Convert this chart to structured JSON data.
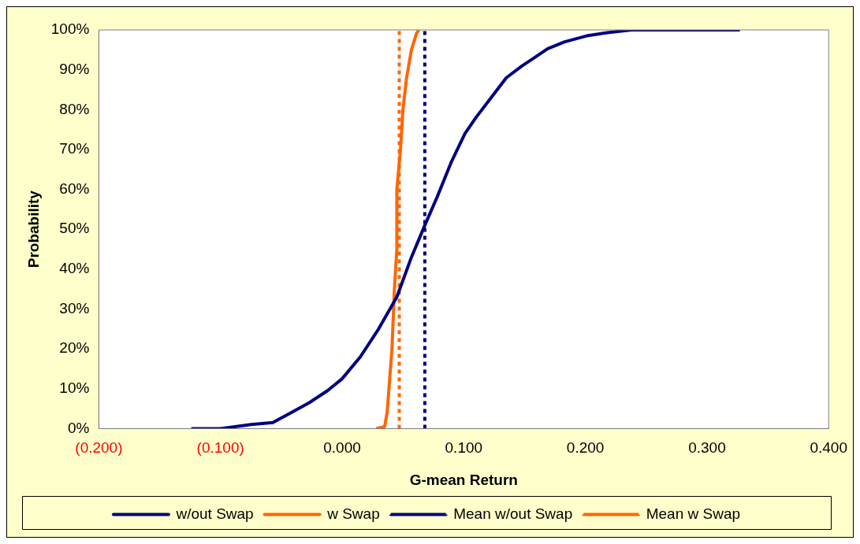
{
  "chart_data": {
    "type": "line",
    "xlabel": "G-mean Return",
    "ylabel": "Probability",
    "xlim": [
      -0.2,
      0.4
    ],
    "xticks": [
      {
        "value": -0.2,
        "label": "(0.200)"
      },
      {
        "value": -0.1,
        "label": "(0.100)"
      },
      {
        "value": 0,
        "label": "0.000"
      },
      {
        "value": 0.1,
        "label": "0.100"
      },
      {
        "value": 0.2,
        "label": "0.200"
      },
      {
        "value": 0.3,
        "label": "0.300"
      },
      {
        "value": 0.4,
        "label": "0.400"
      }
    ],
    "ylim": [
      0,
      100
    ],
    "yticks": [
      {
        "value": 0,
        "label": "0%"
      },
      {
        "value": 10,
        "label": "10%"
      },
      {
        "value": 20,
        "label": "20%"
      },
      {
        "value": 30,
        "label": "30%"
      },
      {
        "value": 40,
        "label": "40%"
      },
      {
        "value": 50,
        "label": "50%"
      },
      {
        "value": 60,
        "label": "60%"
      },
      {
        "value": 70,
        "label": "70%"
      },
      {
        "value": 80,
        "label": "80%"
      },
      {
        "value": 90,
        "label": "90%"
      },
      {
        "value": 100,
        "label": "100%"
      }
    ],
    "grid": false,
    "legend": "bottom",
    "marker": "none",
    "series": [
      {
        "name": "w/out Swap",
        "color": "#000080",
        "line_style": "solid",
        "x": [
          -0.124,
          -0.1,
          -0.075,
          -0.057,
          -0.042,
          -0.027,
          -0.012,
          0,
          0.015,
          0.03,
          0.045,
          0.057,
          0.068,
          0.078,
          0.09,
          0.101,
          0.11,
          0.125,
          0.135,
          0.148,
          0.158,
          0.169,
          0.183,
          0.201,
          0.218,
          0.238,
          0.327
        ],
        "values": [
          0,
          0,
          1,
          1.5,
          4,
          6.5,
          9.5,
          12.5,
          18,
          25,
          33,
          43,
          51,
          58,
          67,
          74,
          78,
          84,
          88,
          91,
          93,
          95.3,
          97,
          98.5,
          99.3,
          100,
          100
        ]
      },
      {
        "name": "w Swap",
        "color": "#ff6600",
        "line_style": "solid",
        "x": [
          0.028,
          0.035,
          0.037,
          0.038,
          0.039,
          0.041,
          0.043,
          0.045,
          0.045,
          0.048,
          0.05,
          0.053,
          0.057,
          0.061,
          0.063
        ],
        "values": [
          0,
          0.5,
          4,
          8,
          12,
          20,
          35,
          45,
          60,
          70,
          80,
          88,
          95,
          99,
          100
        ]
      },
      {
        "name": "Mean w/out Swap",
        "color": "#000080",
        "line_style": "dotted",
        "x": [
          0.068,
          0.068
        ],
        "values": [
          0,
          100
        ]
      },
      {
        "name": "Mean w Swap",
        "color": "#ff6600",
        "line_style": "dotted",
        "x": [
          0.047,
          0.047
        ],
        "values": [
          0,
          100
        ]
      }
    ]
  }
}
